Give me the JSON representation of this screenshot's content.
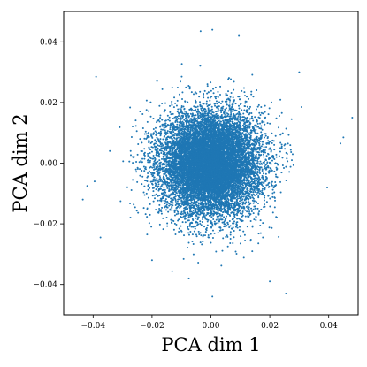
{
  "chart_data": {
    "type": "scatter",
    "title": "",
    "xlabel": "PCA dim 1",
    "ylabel": "PCA dim 2",
    "xlim": [
      -0.05,
      0.05
    ],
    "ylim": [
      -0.05,
      0.05
    ],
    "x_ticks": [
      -0.04,
      -0.02,
      0.0,
      0.02,
      0.04
    ],
    "y_ticks": [
      -0.04,
      -0.02,
      0.0,
      0.02,
      0.04
    ],
    "x_tick_labels": [
      "−0.04",
      "−0.02",
      "0.00",
      "0.02",
      "0.04"
    ],
    "y_tick_labels": [
      "−0.04",
      "−0.02",
      "0.00",
      "0.02",
      "0.04"
    ],
    "grid": false,
    "marker_color": "#1f77b4",
    "distribution": {
      "shape": "dense roughly circular cloud centered at origin",
      "center": [
        0.0,
        0.0
      ],
      "std_x": 0.0085,
      "std_y": 0.0085
    },
    "outliers": [
      {
        "x": -0.039,
        "y": 0.0285
      },
      {
        "x": -0.0035,
        "y": 0.0435
      },
      {
        "x": 0.0005,
        "y": 0.044
      },
      {
        "x": 0.0095,
        "y": 0.042
      },
      {
        "x": -0.0435,
        "y": -0.012
      },
      {
        "x": -0.042,
        "y": -0.0075
      },
      {
        "x": -0.0375,
        "y": -0.0245
      },
      {
        "x": -0.0395,
        "y": -0.006
      },
      {
        "x": 0.048,
        "y": 0.015
      },
      {
        "x": 0.045,
        "y": 0.0085
      },
      {
        "x": 0.044,
        "y": 0.0065
      },
      {
        "x": 0.0395,
        "y": -0.008
      },
      {
        "x": 0.0255,
        "y": -0.043
      },
      {
        "x": 0.0005,
        "y": -0.044
      },
      {
        "x": -0.0075,
        "y": -0.038
      },
      {
        "x": 0.02,
        "y": -0.039
      },
      {
        "x": -0.02,
        "y": -0.032
      },
      {
        "x": 0.03,
        "y": 0.03
      }
    ]
  }
}
